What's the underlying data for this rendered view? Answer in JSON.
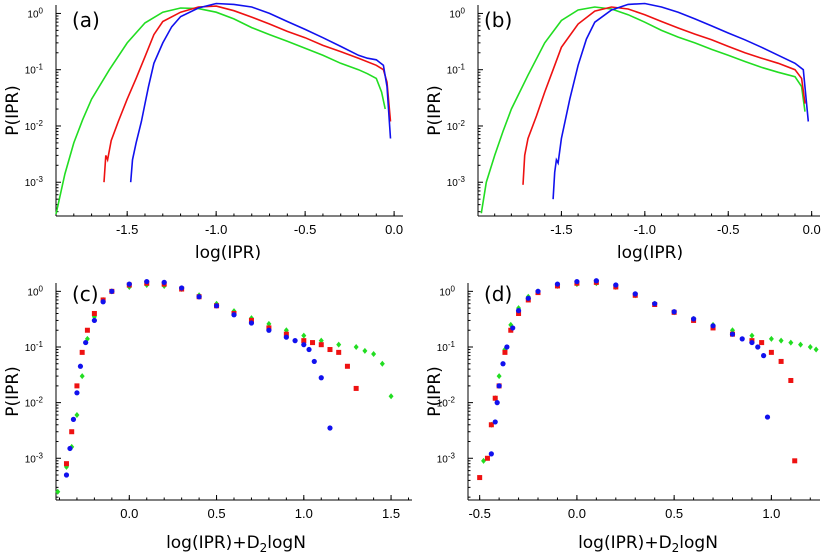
{
  "figure": {
    "description_free": true
  },
  "colors": {
    "green": "#22dd22",
    "red": "#ee1111",
    "blue": "#1111ee"
  },
  "chart_data": [
    {
      "id": "a",
      "type": "line",
      "panel_label": "(a)",
      "xlabel": "log(IPR)",
      "ylabel": "P(IPR)",
      "xlim": [
        -1.9,
        0.05
      ],
      "ylog_range": [
        -3.6,
        0.15
      ],
      "xticks": [
        {
          "v": -1.5,
          "label": "-1.5"
        },
        {
          "v": -1.0,
          "label": "-1.0"
        },
        {
          "v": -0.5,
          "label": "-0.5"
        },
        {
          "v": 0.0,
          "label": "0.0"
        }
      ],
      "yticks": [
        {
          "exp": 0,
          "base": "10",
          "sup": "0"
        },
        {
          "exp": -1,
          "base": "10",
          "sup": "-1"
        },
        {
          "exp": -2,
          "base": "10",
          "sup": "-2"
        },
        {
          "exp": -3,
          "base": "10",
          "sup": "-3"
        }
      ],
      "series": [
        {
          "name": "green",
          "color": "#22dd22",
          "x": [
            -1.9,
            -1.85,
            -1.8,
            -1.75,
            -1.7,
            -1.6,
            -1.5,
            -1.4,
            -1.3,
            -1.2,
            -1.1,
            -1.0,
            -0.9,
            -0.8,
            -0.7,
            -0.6,
            -0.5,
            -0.4,
            -0.3,
            -0.2,
            -0.15,
            -0.1,
            -0.07,
            -0.05
          ],
          "y": [
            0.00027,
            0.0014,
            0.005,
            0.013,
            0.03,
            0.1,
            0.3,
            0.68,
            1.05,
            1.25,
            1.22,
            1.05,
            0.8,
            0.56,
            0.42,
            0.32,
            0.24,
            0.18,
            0.13,
            0.1,
            0.085,
            0.07,
            0.04,
            0.02
          ]
        },
        {
          "name": "red",
          "color": "#ee1111",
          "x": [
            -1.63,
            -1.62,
            -1.61,
            -1.59,
            -1.55,
            -1.5,
            -1.45,
            -1.4,
            -1.35,
            -1.3,
            -1.2,
            -1.1,
            -1.0,
            -0.9,
            -0.8,
            -0.7,
            -0.6,
            -0.5,
            -0.4,
            -0.3,
            -0.2,
            -0.1,
            -0.06,
            -0.04,
            -0.02
          ],
          "y": [
            0.001,
            0.003,
            0.0025,
            0.0055,
            0.012,
            0.03,
            0.07,
            0.17,
            0.42,
            0.72,
            1.05,
            1.3,
            1.35,
            1.12,
            0.86,
            0.65,
            0.48,
            0.37,
            0.27,
            0.21,
            0.16,
            0.12,
            0.1,
            0.06,
            0.012
          ]
        },
        {
          "name": "blue",
          "color": "#1111ee",
          "x": [
            -1.48,
            -1.47,
            -1.45,
            -1.42,
            -1.4,
            -1.38,
            -1.35,
            -1.3,
            -1.25,
            -1.2,
            -1.1,
            -1.0,
            -0.9,
            -0.8,
            -0.7,
            -0.6,
            -0.5,
            -0.4,
            -0.3,
            -0.2,
            -0.15,
            -0.1,
            -0.06,
            -0.04,
            -0.02
          ],
          "y": [
            0.001,
            0.0025,
            0.005,
            0.012,
            0.025,
            0.05,
            0.13,
            0.3,
            0.58,
            0.88,
            1.25,
            1.5,
            1.45,
            1.3,
            1.0,
            0.72,
            0.52,
            0.37,
            0.26,
            0.18,
            0.16,
            0.15,
            0.12,
            0.05,
            0.006
          ]
        }
      ]
    },
    {
      "id": "b",
      "type": "line",
      "panel_label": "(b)",
      "xlabel": "log(IPR)",
      "ylabel": "P(IPR)",
      "xlim": [
        -2.0,
        0.05
      ],
      "ylog_range": [
        -3.6,
        0.15
      ],
      "xticks": [
        {
          "v": -1.5,
          "label": "-1.5"
        },
        {
          "v": -1.0,
          "label": "-1.0"
        },
        {
          "v": -0.5,
          "label": "-0.5"
        },
        {
          "v": 0.0,
          "label": "0.0"
        }
      ],
      "yticks": [
        {
          "exp": 0,
          "base": "10",
          "sup": "0"
        },
        {
          "exp": -1,
          "base": "10",
          "sup": "-1"
        },
        {
          "exp": -2,
          "base": "10",
          "sup": "-2"
        },
        {
          "exp": -3,
          "base": "10",
          "sup": "-3"
        }
      ],
      "series": [
        {
          "name": "green",
          "color": "#22dd22",
          "x": [
            -1.98,
            -1.95,
            -1.9,
            -1.85,
            -1.8,
            -1.7,
            -1.6,
            -1.5,
            -1.4,
            -1.3,
            -1.2,
            -1.1,
            -1.0,
            -0.9,
            -0.8,
            -0.7,
            -0.6,
            -0.5,
            -0.4,
            -0.3,
            -0.2,
            -0.1,
            -0.06,
            -0.04
          ],
          "y": [
            0.00028,
            0.001,
            0.003,
            0.008,
            0.02,
            0.08,
            0.3,
            0.75,
            1.15,
            1.3,
            1.2,
            0.95,
            0.7,
            0.5,
            0.38,
            0.3,
            0.23,
            0.18,
            0.14,
            0.11,
            0.09,
            0.075,
            0.05,
            0.018
          ]
        },
        {
          "name": "red",
          "color": "#ee1111",
          "x": [
            -1.73,
            -1.72,
            -1.7,
            -1.65,
            -1.6,
            -1.55,
            -1.5,
            -1.4,
            -1.3,
            -1.2,
            -1.1,
            -1.0,
            -0.9,
            -0.8,
            -0.7,
            -0.6,
            -0.5,
            -0.4,
            -0.3,
            -0.2,
            -0.1,
            -0.06,
            -0.04
          ],
          "y": [
            0.0009,
            0.003,
            0.006,
            0.015,
            0.04,
            0.1,
            0.25,
            0.65,
            1.1,
            1.3,
            1.2,
            0.95,
            0.72,
            0.55,
            0.43,
            0.34,
            0.26,
            0.2,
            0.16,
            0.13,
            0.1,
            0.07,
            0.025
          ]
        },
        {
          "name": "blue",
          "color": "#1111ee",
          "x": [
            -1.55,
            -1.54,
            -1.53,
            -1.52,
            -1.5,
            -1.45,
            -1.4,
            -1.35,
            -1.3,
            -1.2,
            -1.1,
            -1.0,
            -0.9,
            -0.8,
            -0.7,
            -0.6,
            -0.5,
            -0.4,
            -0.3,
            -0.2,
            -0.1,
            -0.05,
            -0.02
          ],
          "y": [
            0.0005,
            0.0015,
            0.0025,
            0.0022,
            0.006,
            0.03,
            0.12,
            0.35,
            0.7,
            1.15,
            1.45,
            1.5,
            1.3,
            1.05,
            0.8,
            0.6,
            0.45,
            0.34,
            0.25,
            0.18,
            0.13,
            0.1,
            0.012
          ]
        }
      ]
    },
    {
      "id": "c",
      "type": "scatter",
      "panel_label": "(c)",
      "xlabel": "log(IPR)+D",
      "xlabel_sub": "2",
      "xlabel_rest": "logN",
      "ylabel": "P(IPR)",
      "xlim": [
        -0.42,
        1.62
      ],
      "ylog_range": [
        -3.75,
        0.15
      ],
      "xticks": [
        {
          "v": 0.0,
          "label": "0.0"
        },
        {
          "v": 0.5,
          "label": "0.5"
        },
        {
          "v": 1.0,
          "label": "1.0"
        },
        {
          "v": 1.5,
          "label": "1.5"
        }
      ],
      "yticks": [
        {
          "exp": 0,
          "base": "10",
          "sup": "0"
        },
        {
          "exp": -1,
          "base": "10",
          "sup": "-1"
        },
        {
          "exp": -2,
          "base": "10",
          "sup": "-2"
        },
        {
          "exp": -3,
          "base": "10",
          "sup": "-3"
        }
      ],
      "series": [
        {
          "name": "green",
          "color": "#22dd22",
          "marker": "diamond",
          "x": [
            -0.41,
            -0.36,
            -0.33,
            -0.3,
            -0.27,
            -0.24,
            -0.2,
            -0.15,
            -0.1,
            0.0,
            0.1,
            0.2,
            0.3,
            0.4,
            0.5,
            0.6,
            0.7,
            0.8,
            0.9,
            1.0,
            1.1,
            1.2,
            1.3,
            1.35,
            1.4,
            1.45,
            1.5
          ],
          "y": [
            0.00025,
            0.0007,
            0.0016,
            0.006,
            0.03,
            0.14,
            0.35,
            0.7,
            1.0,
            1.2,
            1.3,
            1.25,
            1.1,
            0.85,
            0.6,
            0.44,
            0.33,
            0.26,
            0.2,
            0.16,
            0.13,
            0.11,
            0.1,
            0.085,
            0.075,
            0.05,
            0.013
          ]
        },
        {
          "name": "red",
          "color": "#ee1111",
          "marker": "square",
          "x": [
            -0.36,
            -0.33,
            -0.3,
            -0.27,
            -0.24,
            -0.2,
            -0.15,
            -0.1,
            0.0,
            0.1,
            0.2,
            0.3,
            0.4,
            0.5,
            0.6,
            0.7,
            0.8,
            0.9,
            1.0,
            1.05,
            1.1,
            1.15,
            1.2,
            1.25,
            1.3
          ],
          "y": [
            0.0008,
            0.003,
            0.02,
            0.08,
            0.2,
            0.4,
            0.7,
            1.0,
            1.3,
            1.4,
            1.35,
            1.1,
            0.8,
            0.55,
            0.4,
            0.3,
            0.22,
            0.17,
            0.13,
            0.12,
            0.11,
            0.09,
            0.08,
            0.045,
            0.018
          ]
        },
        {
          "name": "blue",
          "color": "#1111ee",
          "marker": "circle",
          "x": [
            -0.36,
            -0.34,
            -0.32,
            -0.3,
            -0.28,
            -0.25,
            -0.2,
            -0.15,
            -0.1,
            0.0,
            0.1,
            0.2,
            0.3,
            0.4,
            0.5,
            0.6,
            0.7,
            0.8,
            0.9,
            0.95,
            1.0,
            1.03,
            1.06,
            1.1,
            1.15
          ],
          "y": [
            0.0005,
            0.0015,
            0.005,
            0.015,
            0.045,
            0.12,
            0.3,
            0.65,
            1.0,
            1.35,
            1.5,
            1.45,
            1.15,
            0.8,
            0.55,
            0.38,
            0.27,
            0.2,
            0.15,
            0.13,
            0.11,
            0.09,
            0.055,
            0.028,
            0.0035
          ]
        }
      ]
    },
    {
      "id": "d",
      "type": "scatter",
      "panel_label": "(d)",
      "xlabel": "log(IPR)+D",
      "xlabel_sub": "2",
      "xlabel_rest": "logN",
      "ylabel": "P(IPR)",
      "xlim": [
        -0.56,
        1.25
      ],
      "ylog_range": [
        -3.75,
        0.15
      ],
      "xticks": [
        {
          "v": -0.5,
          "label": "-0.5"
        },
        {
          "v": 0.0,
          "label": "0.0"
        },
        {
          "v": 0.5,
          "label": "0.5"
        },
        {
          "v": 1.0,
          "label": "1.0"
        }
      ],
      "yticks": [
        {
          "exp": 0,
          "base": "10",
          "sup": "0"
        },
        {
          "exp": -1,
          "base": "10",
          "sup": "-1"
        },
        {
          "exp": -2,
          "base": "10",
          "sup": "-2"
        },
        {
          "exp": -3,
          "base": "10",
          "sup": "-3"
        }
      ],
      "series": [
        {
          "name": "green",
          "color": "#22dd22",
          "marker": "diamond",
          "x": [
            -0.48,
            -0.44,
            -0.42,
            -0.4,
            -0.37,
            -0.34,
            -0.3,
            -0.25,
            -0.2,
            -0.1,
            0.0,
            0.1,
            0.2,
            0.3,
            0.4,
            0.5,
            0.6,
            0.7,
            0.8,
            0.9,
            1.0,
            1.05,
            1.1,
            1.15,
            1.2,
            1.23
          ],
          "y": [
            0.0009,
            0.004,
            0.012,
            0.03,
            0.09,
            0.25,
            0.5,
            0.8,
            1.0,
            1.25,
            1.35,
            1.4,
            1.2,
            0.85,
            0.6,
            0.42,
            0.32,
            0.25,
            0.2,
            0.16,
            0.14,
            0.13,
            0.12,
            0.11,
            0.1,
            0.09
          ]
        },
        {
          "name": "red",
          "color": "#ee1111",
          "marker": "square",
          "x": [
            -0.5,
            -0.46,
            -0.44,
            -0.42,
            -0.4,
            -0.37,
            -0.34,
            -0.3,
            -0.25,
            -0.2,
            -0.1,
            0.0,
            0.1,
            0.2,
            0.3,
            0.4,
            0.5,
            0.6,
            0.7,
            0.8,
            0.9,
            0.95,
            1.0,
            1.05,
            1.1,
            1.12
          ],
          "y": [
            0.00045,
            0.001,
            0.004,
            0.012,
            0.02,
            0.08,
            0.2,
            0.4,
            0.7,
            0.95,
            1.25,
            1.4,
            1.45,
            1.2,
            0.85,
            0.58,
            0.42,
            0.3,
            0.22,
            0.17,
            0.13,
            0.12,
            0.08,
            0.055,
            0.025,
            0.0009
          ]
        },
        {
          "name": "blue",
          "color": "#1111ee",
          "marker": "circle",
          "x": [
            -0.44,
            -0.42,
            -0.41,
            -0.4,
            -0.38,
            -0.36,
            -0.33,
            -0.3,
            -0.25,
            -0.2,
            -0.1,
            0.0,
            0.1,
            0.2,
            0.3,
            0.4,
            0.5,
            0.6,
            0.7,
            0.8,
            0.85,
            0.9,
            0.93,
            0.96,
            0.98
          ],
          "y": [
            0.0012,
            0.0045,
            0.01,
            0.02,
            0.05,
            0.1,
            0.22,
            0.45,
            0.75,
            1.0,
            1.35,
            1.5,
            1.55,
            1.3,
            0.9,
            0.6,
            0.43,
            0.32,
            0.24,
            0.17,
            0.14,
            0.12,
            0.1,
            0.07,
            0.0055
          ]
        }
      ]
    }
  ]
}
